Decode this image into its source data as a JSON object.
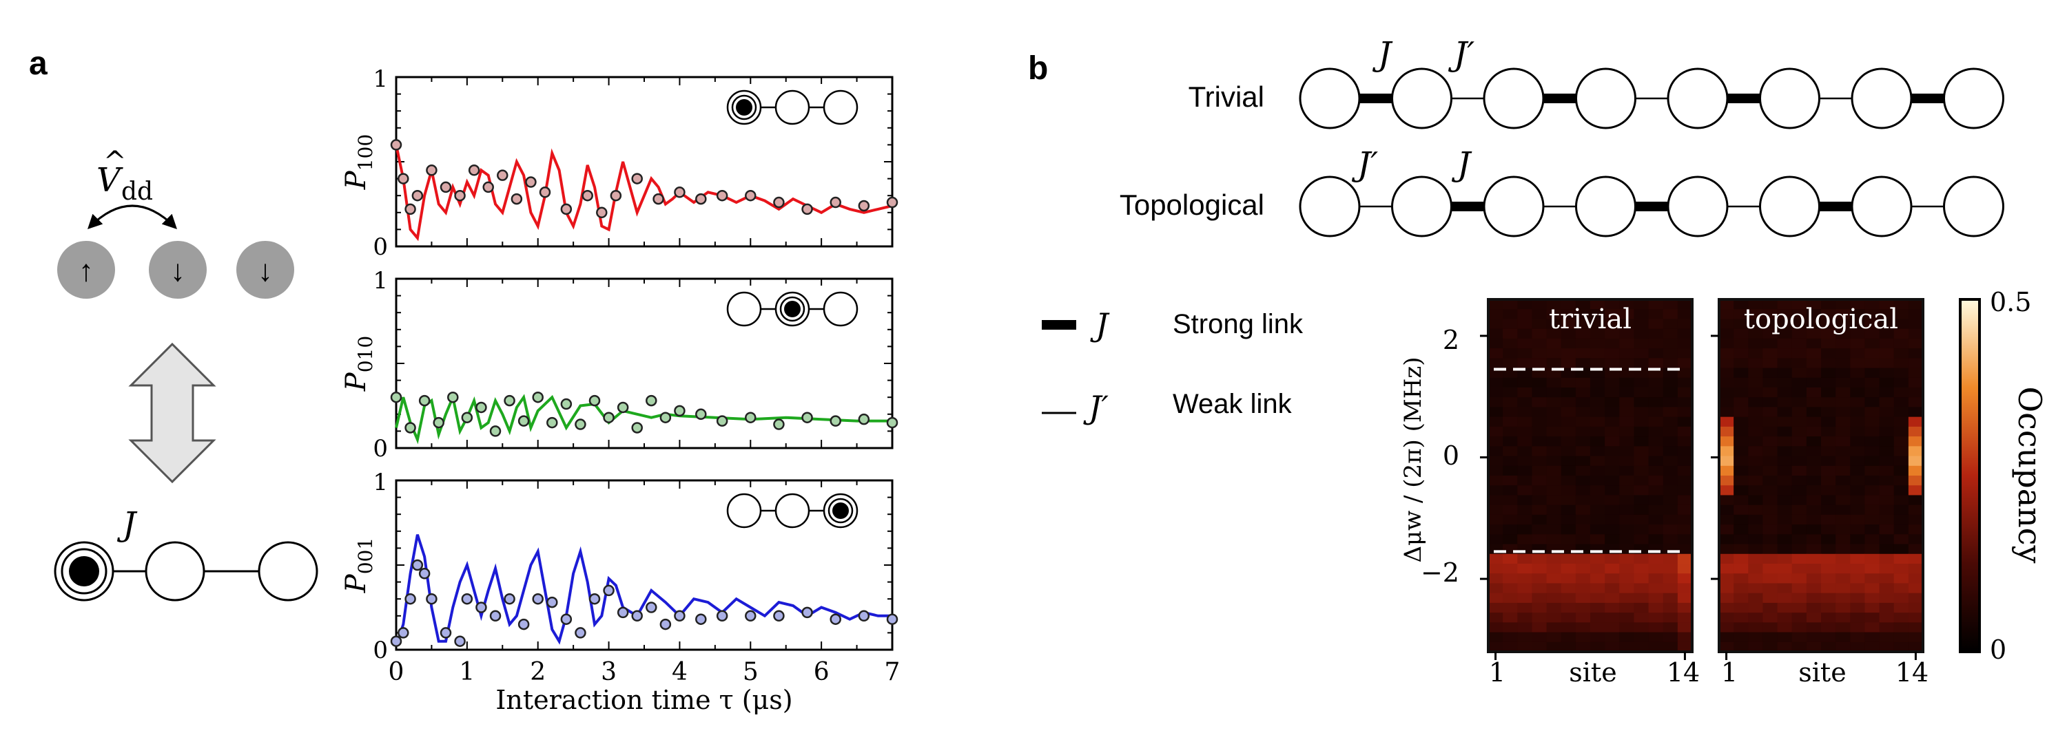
{
  "panel_a": {
    "label": "a",
    "operator_hat": "^",
    "operator_V": "V",
    "operator_sub": "dd",
    "spins": [
      "↑",
      "↓",
      "↓"
    ],
    "coupling": "J",
    "plots": [
      {
        "ylabel_main": "P",
        "ylabel_sub": "100",
        "y_top": "1",
        "y_bottom": "0",
        "occupied": 0
      },
      {
        "ylabel_main": "P",
        "ylabel_sub": "010",
        "y_top": "1",
        "y_bottom": "0",
        "occupied": 1
      },
      {
        "ylabel_main": "P",
        "ylabel_sub": "001",
        "y_top": "1",
        "y_bottom": "0",
        "occupied": 2
      }
    ],
    "x_ticks": [
      "0",
      "1",
      "2",
      "3",
      "4",
      "5",
      "6",
      "7"
    ],
    "xlabel": "Interaction time τ (μs)"
  },
  "chart_data": [
    {
      "type": "scatter",
      "title": "P100",
      "xlabel": "Interaction time τ (μs)",
      "ylabel": "P100",
      "xlim": [
        0,
        7
      ],
      "ylim": [
        0,
        1
      ],
      "color": "#e8141a",
      "x": [
        0.0,
        0.1,
        0.2,
        0.3,
        0.5,
        0.7,
        0.9,
        1.1,
        1.3,
        1.5,
        1.7,
        1.9,
        2.1,
        2.4,
        2.7,
        2.9,
        3.1,
        3.4,
        3.7,
        4.0,
        4.3,
        4.6,
        5.0,
        5.4,
        5.8,
        6.2,
        6.6,
        7.0
      ],
      "data": [
        0.6,
        0.4,
        0.22,
        0.3,
        0.45,
        0.35,
        0.3,
        0.45,
        0.35,
        0.42,
        0.28,
        0.38,
        0.32,
        0.22,
        0.3,
        0.2,
        0.3,
        0.4,
        0.28,
        0.32,
        0.28,
        0.3,
        0.3,
        0.26,
        0.22,
        0.26,
        0.24,
        0.26
      ],
      "fit_x": [
        0.0,
        0.1,
        0.2,
        0.3,
        0.4,
        0.5,
        0.6,
        0.7,
        0.8,
        0.9,
        1.0,
        1.1,
        1.2,
        1.3,
        1.4,
        1.5,
        1.6,
        1.7,
        1.8,
        1.9,
        2.0,
        2.1,
        2.2,
        2.3,
        2.4,
        2.5,
        2.6,
        2.7,
        2.8,
        2.9,
        3.0,
        3.1,
        3.2,
        3.3,
        3.4,
        3.5,
        3.6,
        3.7,
        3.8,
        3.9,
        4.0,
        4.2,
        4.4,
        4.6,
        4.8,
        5.0,
        5.2,
        5.4,
        5.6,
        5.8,
        6.0,
        6.2,
        6.4,
        6.6,
        6.8,
        7.0
      ],
      "fit_y": [
        0.6,
        0.4,
        0.1,
        0.05,
        0.3,
        0.45,
        0.25,
        0.2,
        0.35,
        0.25,
        0.38,
        0.3,
        0.45,
        0.42,
        0.25,
        0.2,
        0.35,
        0.5,
        0.42,
        0.2,
        0.12,
        0.3,
        0.55,
        0.45,
        0.2,
        0.12,
        0.25,
        0.48,
        0.35,
        0.12,
        0.1,
        0.32,
        0.5,
        0.35,
        0.2,
        0.3,
        0.4,
        0.35,
        0.25,
        0.28,
        0.32,
        0.26,
        0.32,
        0.3,
        0.26,
        0.3,
        0.27,
        0.22,
        0.28,
        0.24,
        0.2,
        0.25,
        0.22,
        0.2,
        0.22,
        0.24
      ]
    },
    {
      "type": "scatter",
      "title": "P010",
      "xlabel": "Interaction time τ (μs)",
      "ylabel": "P010",
      "xlim": [
        0,
        7
      ],
      "ylim": [
        0,
        1
      ],
      "color": "#1ea81e",
      "x": [
        0.0,
        0.2,
        0.4,
        0.6,
        0.8,
        1.0,
        1.2,
        1.4,
        1.6,
        1.8,
        2.0,
        2.2,
        2.4,
        2.6,
        2.8,
        3.0,
        3.2,
        3.4,
        3.6,
        3.8,
        4.0,
        4.3,
        4.6,
        5.0,
        5.4,
        5.8,
        6.2,
        6.6,
        7.0
      ],
      "data": [
        0.3,
        0.12,
        0.28,
        0.15,
        0.3,
        0.18,
        0.24,
        0.1,
        0.28,
        0.16,
        0.3,
        0.15,
        0.26,
        0.14,
        0.28,
        0.18,
        0.24,
        0.12,
        0.28,
        0.18,
        0.22,
        0.2,
        0.16,
        0.18,
        0.14,
        0.18,
        0.16,
        0.17,
        0.15
      ],
      "fit_x": [
        0.0,
        0.1,
        0.2,
        0.3,
        0.4,
        0.5,
        0.6,
        0.7,
        0.8,
        0.9,
        1.0,
        1.1,
        1.2,
        1.3,
        1.4,
        1.5,
        1.6,
        1.7,
        1.8,
        1.9,
        2.0,
        2.2,
        2.4,
        2.6,
        2.8,
        3.0,
        3.2,
        3.4,
        3.6,
        3.8,
        4.0,
        4.5,
        5.0,
        5.5,
        6.0,
        6.5,
        7.0
      ],
      "fit_y": [
        0.12,
        0.3,
        0.15,
        0.05,
        0.25,
        0.28,
        0.08,
        0.2,
        0.3,
        0.1,
        0.18,
        0.28,
        0.12,
        0.15,
        0.28,
        0.2,
        0.1,
        0.24,
        0.3,
        0.12,
        0.22,
        0.3,
        0.12,
        0.25,
        0.26,
        0.15,
        0.22,
        0.2,
        0.18,
        0.2,
        0.19,
        0.18,
        0.17,
        0.18,
        0.17,
        0.16,
        0.16
      ]
    },
    {
      "type": "scatter",
      "title": "P001",
      "xlabel": "Interaction time τ (μs)",
      "ylabel": "P001",
      "xlim": [
        0,
        7
      ],
      "ylim": [
        0,
        1
      ],
      "color": "#1c1cd6",
      "x": [
        0.0,
        0.1,
        0.2,
        0.3,
        0.4,
        0.5,
        0.7,
        0.9,
        1.0,
        1.2,
        1.4,
        1.6,
        1.8,
        2.0,
        2.2,
        2.4,
        2.6,
        2.8,
        3.0,
        3.2,
        3.4,
        3.6,
        3.8,
        4.0,
        4.3,
        4.6,
        5.0,
        5.4,
        5.8,
        6.2,
        6.6,
        7.0
      ],
      "data": [
        0.05,
        0.1,
        0.3,
        0.5,
        0.45,
        0.3,
        0.1,
        0.05,
        0.3,
        0.25,
        0.2,
        0.3,
        0.15,
        0.3,
        0.28,
        0.18,
        0.1,
        0.3,
        0.35,
        0.22,
        0.2,
        0.25,
        0.15,
        0.2,
        0.18,
        0.2,
        0.2,
        0.2,
        0.22,
        0.18,
        0.2,
        0.18
      ],
      "fit_x": [
        0.0,
        0.1,
        0.2,
        0.3,
        0.4,
        0.5,
        0.6,
        0.7,
        0.8,
        0.9,
        1.0,
        1.1,
        1.2,
        1.3,
        1.4,
        1.5,
        1.6,
        1.7,
        1.8,
        1.9,
        2.0,
        2.1,
        2.2,
        2.3,
        2.4,
        2.5,
        2.6,
        2.7,
        2.8,
        2.9,
        3.0,
        3.1,
        3.2,
        3.4,
        3.6,
        3.8,
        4.0,
        4.2,
        4.4,
        4.6,
        4.8,
        5.0,
        5.2,
        5.4,
        5.6,
        5.8,
        6.0,
        6.2,
        6.4,
        6.6,
        6.8,
        7.0
      ],
      "fit_y": [
        0.02,
        0.15,
        0.45,
        0.68,
        0.55,
        0.25,
        0.05,
        0.05,
        0.25,
        0.4,
        0.5,
        0.35,
        0.2,
        0.35,
        0.48,
        0.3,
        0.15,
        0.2,
        0.35,
        0.5,
        0.58,
        0.35,
        0.12,
        0.05,
        0.2,
        0.45,
        0.58,
        0.4,
        0.15,
        0.2,
        0.42,
        0.38,
        0.25,
        0.2,
        0.35,
        0.28,
        0.2,
        0.3,
        0.28,
        0.22,
        0.3,
        0.25,
        0.2,
        0.28,
        0.26,
        0.2,
        0.25,
        0.22,
        0.18,
        0.22,
        0.2,
        0.2
      ]
    },
    {
      "type": "heatmap",
      "title": "trivial",
      "xlabel": "site",
      "ylabel": "Δμw/(2π) (MHz)",
      "x_ticks": [
        "1",
        "14"
      ],
      "y_ticks": [
        "2",
        "0",
        "−2"
      ],
      "ylim": [
        -3.2,
        2.6
      ],
      "band_edges_dashed": [
        1.45,
        -1.55
      ],
      "colorbar": {
        "label": "Occupancy",
        "min": "0",
        "max": "0.5"
      },
      "edge_modes": false
    },
    {
      "type": "heatmap",
      "title": "topological",
      "xlabel": "site",
      "ylabel": "Δμw/(2π) (MHz)",
      "x_ticks": [
        "1",
        "14"
      ],
      "ylim": [
        -3.2,
        2.6
      ],
      "colorbar": {
        "label": "Occupancy",
        "min": "0",
        "max": "0.5"
      },
      "edge_modes": true
    }
  ],
  "panel_b": {
    "label": "b",
    "chains": [
      {
        "name": "Trivial",
        "strong_first": true,
        "label_left": "J",
        "label_right": "J′"
      },
      {
        "name": "Topological",
        "strong_first": false,
        "label_left": "J′",
        "label_right": "J"
      }
    ],
    "legend": [
      {
        "symbol": "J",
        "desc": "Strong link"
      },
      {
        "symbol": "J′",
        "desc": "Weak link"
      }
    ],
    "heatmaps": {
      "titles": [
        "trivial",
        "topological"
      ],
      "ylabel": "Δμw / (2π)  (MHz)",
      "y_ticks": [
        "2",
        "0",
        "−2"
      ],
      "x_ticks_left": "1",
      "x_ticks_right": "14",
      "xlabel": "site",
      "colorbar_label": "Occupancy",
      "colorbar_max": "0.5",
      "colorbar_min": "0"
    }
  }
}
